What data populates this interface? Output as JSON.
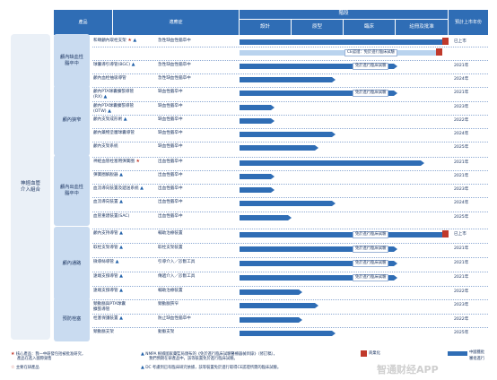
{
  "header": {
    "product": "產品",
    "indication": "適應症",
    "stage_group": "階段",
    "stages": [
      "設計",
      "原型",
      "臨床",
      "註冊及批准"
    ],
    "launch": "預計上市年份"
  },
  "big_category": "神經血管\n介入組合",
  "categories": [
    {
      "label": "顱內缺血性\n腦卒中"
    },
    {
      "label": "顱內狹窄"
    },
    {
      "label": "顱內出血性\n腦卒中"
    },
    {
      "label": "顱內通路"
    },
    {
      "label": "預防栓塞"
    }
  ],
  "rows": [
    {
      "product": "和頤顱內取栓支架",
      "mark": "star+tri",
      "indication": "急性缺血性腦卒中",
      "progress": 1.0,
      "flag": true,
      "year": "已上市"
    },
    {
      "product": "",
      "mark": "",
      "indication": "",
      "progress": 0.97,
      "flag": true,
      "annotation": "CE認證：免於進行臨床試驗",
      "year": ""
    },
    {
      "product": "球囊導引導管(BGC)",
      "mark": "tri",
      "indication": "急性缺血性腦卒中",
      "progress": 0.76,
      "annotation": "免於進行臨床試驗",
      "year": "2021年"
    },
    {
      "product": "顱內血栓抽吸導管",
      "mark": "",
      "indication": "急性缺血性腦卒中",
      "progress": 0.46,
      "year": "2024年"
    },
    {
      "product": "顱內PTA球囊擴張導管\n(RX)",
      "mark": "tri",
      "indication": "缺血性腦卒中",
      "progress": 0.76,
      "annotation": "免於進行臨床試驗",
      "year": "2021年"
    },
    {
      "product": "顱內PTA球囊擴張導管\n(OTW)",
      "mark": "tri",
      "indication": "缺血性腦卒中",
      "progress": 0.17,
      "year": "2023年"
    },
    {
      "product": "顱內支架成形術",
      "mark": "tri",
      "indication": "缺血性腦卒中",
      "progress": 0.17,
      "year": "2022年"
    },
    {
      "product": "顱內藥物塗層球囊導管",
      "mark": "",
      "indication": "缺血性腦卒中",
      "progress": 0.46,
      "year": "2024年"
    },
    {
      "product": "顱內支架系統",
      "mark": "",
      "indication": "缺血性腦卒中",
      "progress": 0.38,
      "year": "2025年"
    },
    {
      "product": "神經血管栓塞用彈簧圈",
      "mark": "star",
      "indication": "出血性腦卒中",
      "progress": 0.89,
      "year": "2021年"
    },
    {
      "product": "彈簧圈解脫器",
      "mark": "tri",
      "indication": "出血性腦卒中",
      "progress": 0.17,
      "year": "2021年"
    },
    {
      "product": "血流導向裝置及遞送系統",
      "mark": "tri",
      "indication": "出血性腦卒中",
      "progress": 0.17,
      "year": "2023年"
    },
    {
      "product": "血流導向裝置",
      "mark": "tri",
      "indication": "出血性腦卒中",
      "progress": 0.46,
      "year": "2024年"
    },
    {
      "product": "血管重建裝置(SAC)",
      "mark": "",
      "indication": "出血性腦卒中",
      "progress": 0.25,
      "year": "2025年"
    },
    {
      "product": "顱內支持導管",
      "mark": "tri",
      "indication": "輔助治療裝置",
      "progress": 1.0,
      "flag": true,
      "annotation": "免於進行臨床試驗",
      "year": "已上市"
    },
    {
      "product": "取栓支架導管",
      "mark": "tri",
      "indication": "取栓支架裝置",
      "progress": 0.76,
      "annotation": "免於進行臨床試驗",
      "year": "2021年"
    },
    {
      "product": "微導絲導管",
      "mark": "tri",
      "indication": "引導介入／診斷工具",
      "progress": 0.76,
      "annotation": "免於進行臨床試驗",
      "year": "2021年"
    },
    {
      "product": "遠端支撐導管",
      "mark": "tri",
      "indication": "傳遞介入／診斷工具",
      "progress": 0.76,
      "annotation": "免於進行臨床試驗",
      "year": "2021年"
    },
    {
      "product": "遠端支撐導管",
      "mark": "tri",
      "indication": "輔助治療裝置",
      "progress": 0.3,
      "year": "2022年"
    },
    {
      "product": "頸動脈與PTA球囊\n擴張導管",
      "mark": "",
      "indication": "頸動脈狹窄",
      "progress": 0.38,
      "year": "2023年"
    },
    {
      "product": "栓塞保護裝置",
      "mark": "tri",
      "indication": "防止缺血性腦卒中",
      "progress": 0.3,
      "year": "2022年"
    },
    {
      "product": "頸動脈支架",
      "mark": "",
      "indication": "動脈支架",
      "progress": 0.46,
      "year": "2025年"
    }
  ],
  "legend": {
    "left1": "核心產品：我一中研發包括被批准研究，",
    "left2": "產品在進入國際銷售",
    "left3": "主要在研產品",
    "mid1": "NMPA 根據國家藥監局頒布的《免於進行臨床試驗醫療器械目錄》（修訂稿），",
    "mid2": "我們預期在研產品中，該等裝置免於進行臨床試驗。",
    "mid3": "DC 考慮到已有臨床研究依據，該等裝置免於進行取得CE認證所需的臨床試驗。",
    "flag_label": "商業化",
    "box_label": "中國獲批",
    "box_label2": "審批進行",
    "watermark": "智通财经APP"
  },
  "colors": {
    "bar": "#2f6db5",
    "bar_light": "#b9d3ee",
    "header": "#2f6db5",
    "flag": "#c0392b"
  }
}
